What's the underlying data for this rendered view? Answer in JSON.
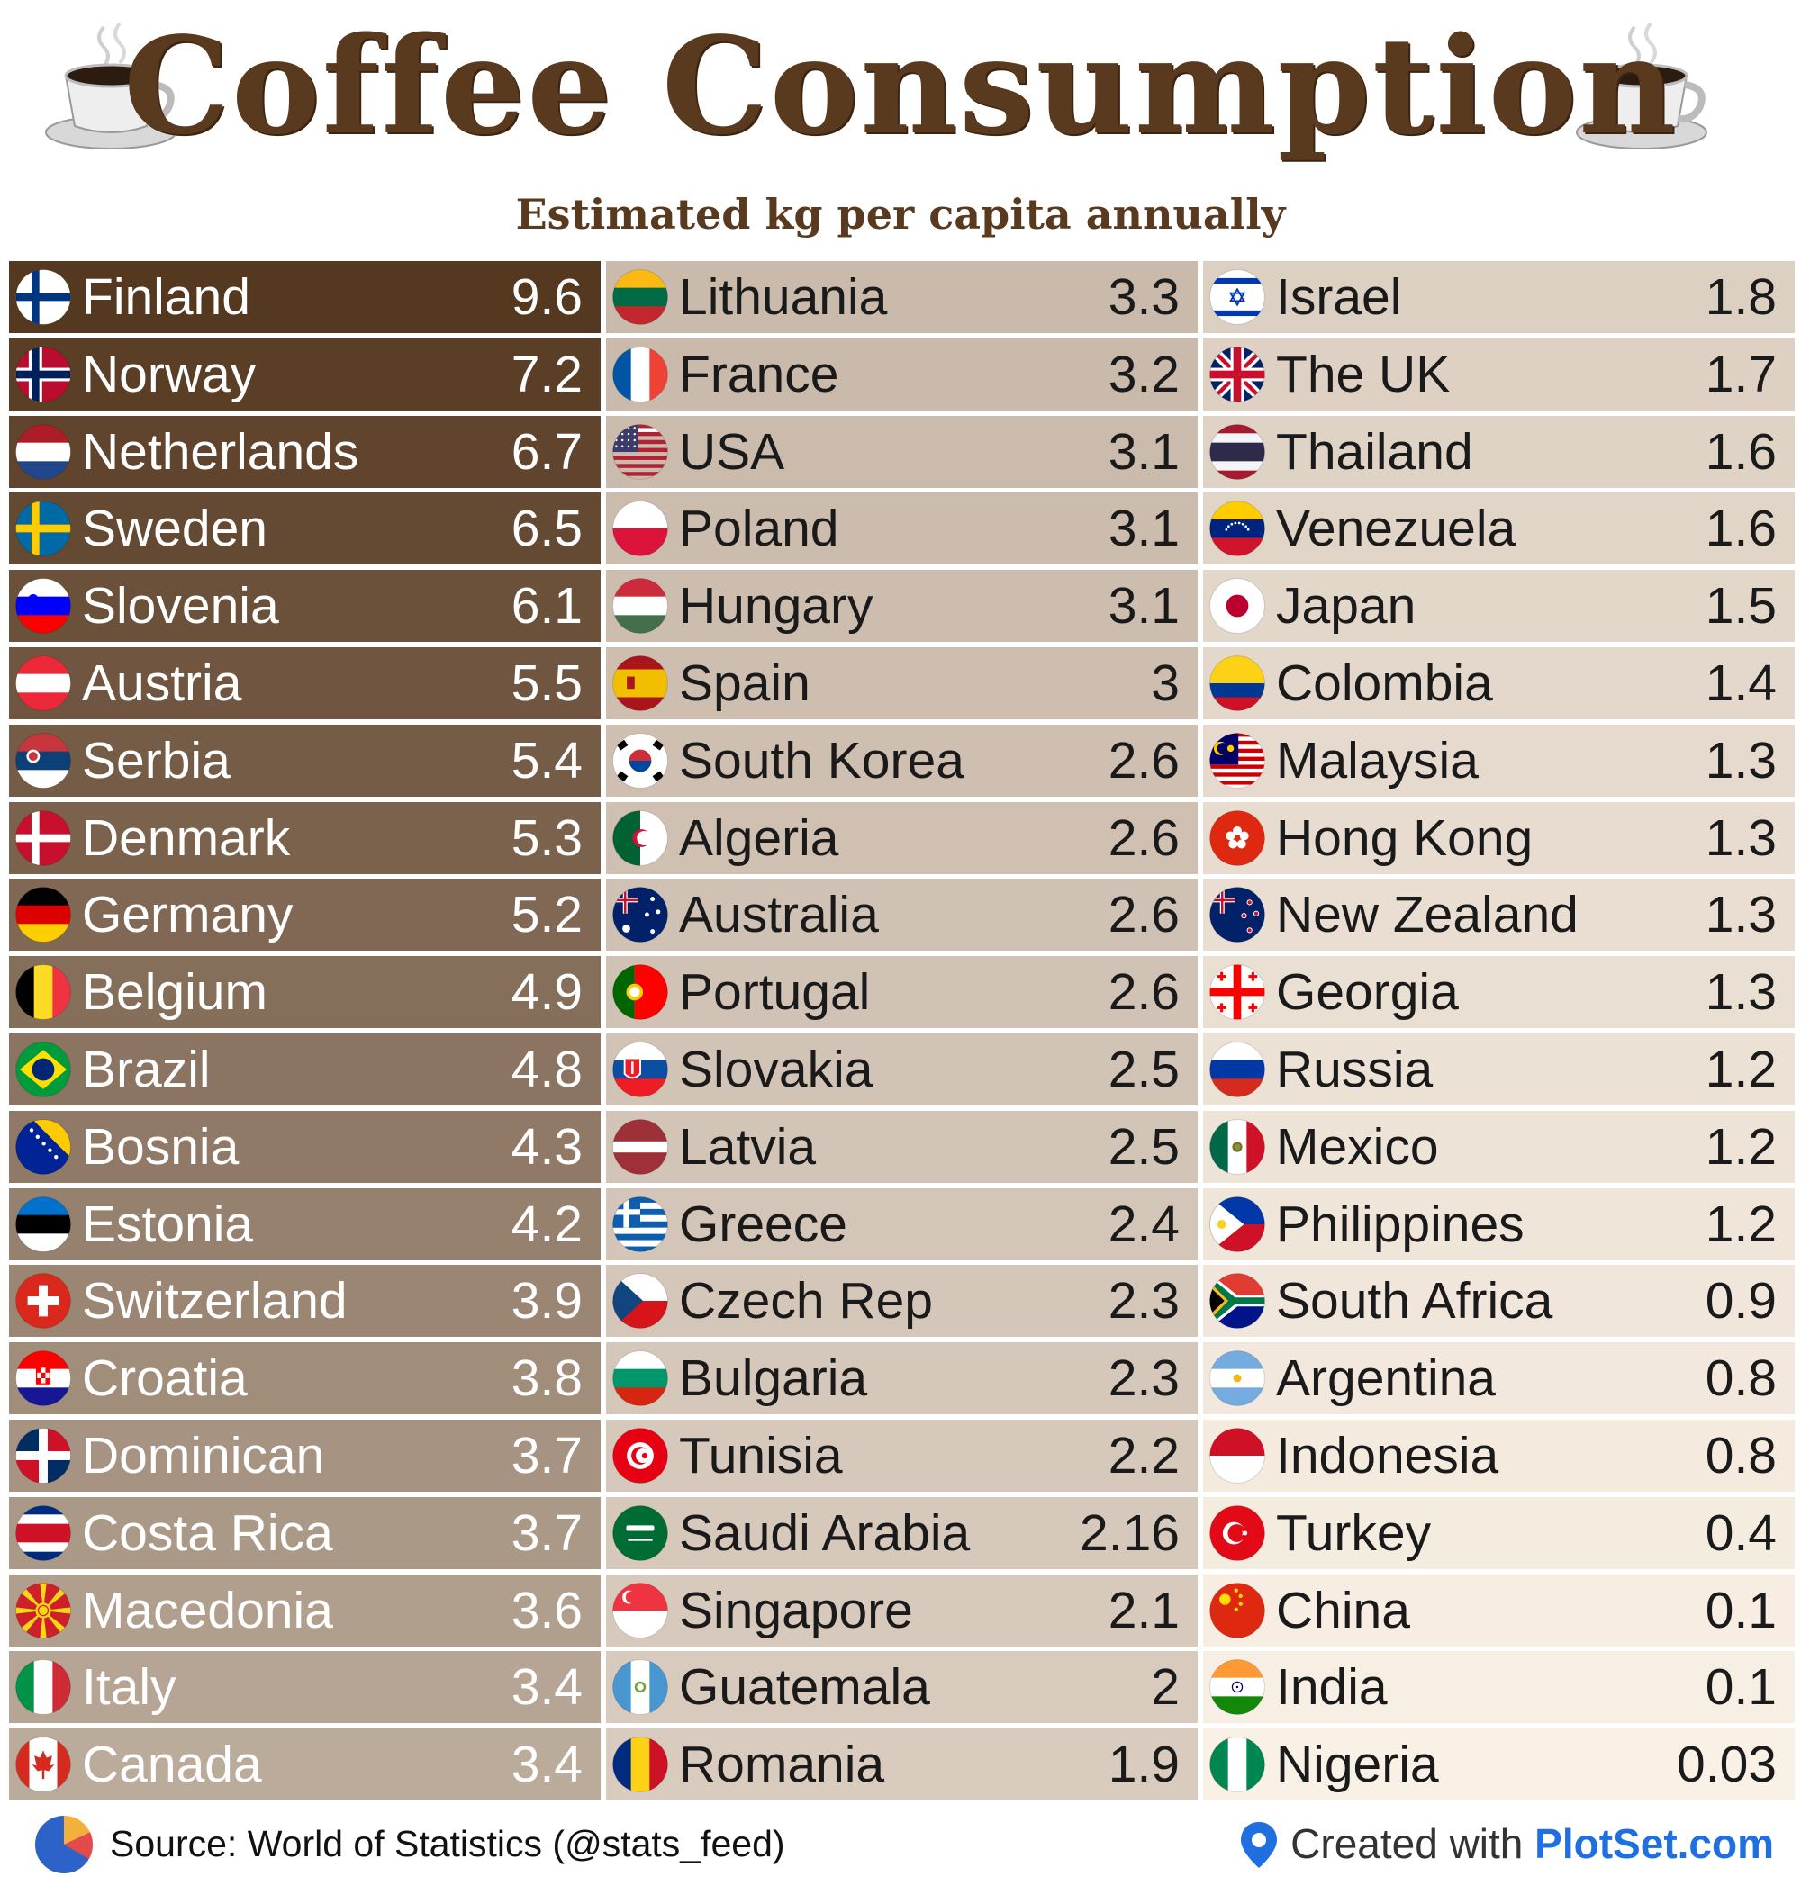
{
  "header": {
    "title": "Coffee Consumption",
    "subtitle": "Estimated kg per capita annually",
    "cup_icon": "coffee-cup-icon"
  },
  "footer": {
    "source": "Source: World of Statistics (@stats_feed)",
    "created_with": "Created with ",
    "brand": "PlotSet.com",
    "source_icon": "pie-chart-icon",
    "brand_icon": "location-pin-icon"
  },
  "chart_data": {
    "type": "table",
    "title": "Coffee Consumption",
    "subtitle": "Estimated kg per capita annually",
    "color_scale": {
      "high": "#553820",
      "low": "#faf1e6"
    },
    "rows": [
      {
        "country": "Finland",
        "value": "9.6",
        "flag": "finland"
      },
      {
        "country": "Norway",
        "value": "7.2",
        "flag": "norway"
      },
      {
        "country": "Netherlands",
        "value": "6.7",
        "flag": "netherlands"
      },
      {
        "country": "Sweden",
        "value": "6.5",
        "flag": "sweden"
      },
      {
        "country": "Slovenia",
        "value": "6.1",
        "flag": "slovenia"
      },
      {
        "country": "Austria",
        "value": "5.5",
        "flag": "austria"
      },
      {
        "country": "Serbia",
        "value": "5.4",
        "flag": "serbia"
      },
      {
        "country": "Denmark",
        "value": "5.3",
        "flag": "denmark"
      },
      {
        "country": "Germany",
        "value": "5.2",
        "flag": "germany"
      },
      {
        "country": "Belgium",
        "value": "4.9",
        "flag": "belgium"
      },
      {
        "country": "Brazil",
        "value": "4.8",
        "flag": "brazil"
      },
      {
        "country": "Bosnia",
        "value": "4.3",
        "flag": "bosnia"
      },
      {
        "country": "Estonia",
        "value": "4.2",
        "flag": "estonia"
      },
      {
        "country": "Switzerland",
        "value": "3.9",
        "flag": "switzerland"
      },
      {
        "country": "Croatia",
        "value": "3.8",
        "flag": "croatia"
      },
      {
        "country": "Dominican",
        "value": "3.7",
        "flag": "dominican"
      },
      {
        "country": "Costa Rica",
        "value": "3.7",
        "flag": "costa-rica"
      },
      {
        "country": "Macedonia",
        "value": "3.6",
        "flag": "macedonia"
      },
      {
        "country": "Italy",
        "value": "3.4",
        "flag": "italy"
      },
      {
        "country": "Canada",
        "value": "3.4",
        "flag": "canada"
      },
      {
        "country": "Lithuania",
        "value": "3.3",
        "flag": "lithuania"
      },
      {
        "country": "France",
        "value": "3.2",
        "flag": "france"
      },
      {
        "country": "USA",
        "value": "3.1",
        "flag": "usa"
      },
      {
        "country": "Poland",
        "value": "3.1",
        "flag": "poland"
      },
      {
        "country": "Hungary",
        "value": "3.1",
        "flag": "hungary"
      },
      {
        "country": "Spain",
        "value": "3",
        "flag": "spain"
      },
      {
        "country": "South Korea",
        "value": "2.6",
        "flag": "south-korea"
      },
      {
        "country": "Algeria",
        "value": "2.6",
        "flag": "algeria"
      },
      {
        "country": "Australia",
        "value": "2.6",
        "flag": "australia"
      },
      {
        "country": "Portugal",
        "value": "2.6",
        "flag": "portugal"
      },
      {
        "country": "Slovakia",
        "value": "2.5",
        "flag": "slovakia"
      },
      {
        "country": "Latvia",
        "value": "2.5",
        "flag": "latvia"
      },
      {
        "country": "Greece",
        "value": "2.4",
        "flag": "greece"
      },
      {
        "country": "Czech Rep",
        "value": "2.3",
        "flag": "czech-rep"
      },
      {
        "country": "Bulgaria",
        "value": "2.3",
        "flag": "bulgaria"
      },
      {
        "country": "Tunisia",
        "value": "2.2",
        "flag": "tunisia"
      },
      {
        "country": "Saudi Arabia",
        "value": "2.16",
        "flag": "saudi-arabia"
      },
      {
        "country": "Singapore",
        "value": "2.1",
        "flag": "singapore"
      },
      {
        "country": "Guatemala",
        "value": "2",
        "flag": "guatemala"
      },
      {
        "country": "Romania",
        "value": "1.9",
        "flag": "romania"
      },
      {
        "country": "Israel",
        "value": "1.8",
        "flag": "israel"
      },
      {
        "country": "The UK",
        "value": "1.7",
        "flag": "uk"
      },
      {
        "country": "Thailand",
        "value": "1.6",
        "flag": "thailand"
      },
      {
        "country": "Venezuela",
        "value": "1.6",
        "flag": "venezuela"
      },
      {
        "country": "Japan",
        "value": "1.5",
        "flag": "japan"
      },
      {
        "country": "Colombia",
        "value": "1.4",
        "flag": "colombia"
      },
      {
        "country": "Malaysia",
        "value": "1.3",
        "flag": "malaysia"
      },
      {
        "country": "Hong Kong",
        "value": "1.3",
        "flag": "hong-kong"
      },
      {
        "country": "New Zealand",
        "value": "1.3",
        "flag": "new-zealand"
      },
      {
        "country": "Georgia",
        "value": "1.3",
        "flag": "georgia"
      },
      {
        "country": "Russia",
        "value": "1.2",
        "flag": "russia"
      },
      {
        "country": "Mexico",
        "value": "1.2",
        "flag": "mexico"
      },
      {
        "country": "Philippines",
        "value": "1.2",
        "flag": "philippines"
      },
      {
        "country": "South Africa",
        "value": "0.9",
        "flag": "south-africa"
      },
      {
        "country": "Argentina",
        "value": "0.8",
        "flag": "argentina"
      },
      {
        "country": "Indonesia",
        "value": "0.8",
        "flag": "indonesia"
      },
      {
        "country": "Turkey",
        "value": "0.4",
        "flag": "turkey"
      },
      {
        "country": "China",
        "value": "0.1",
        "flag": "china"
      },
      {
        "country": "India",
        "value": "0.1",
        "flag": "india"
      },
      {
        "country": "Nigeria",
        "value": "0.03",
        "flag": "nigeria"
      }
    ]
  }
}
